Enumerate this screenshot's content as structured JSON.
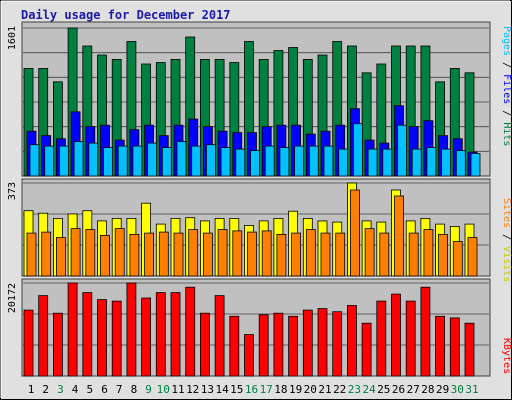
{
  "chart_data": {
    "type": "bar",
    "title": "Daily usage for December 2017",
    "categories": [
      "1",
      "2",
      "3",
      "4",
      "5",
      "6",
      "7",
      "8",
      "9",
      "10",
      "11",
      "12",
      "13",
      "14",
      "15",
      "16",
      "17",
      "18",
      "19",
      "20",
      "21",
      "22",
      "23",
      "24",
      "25",
      "26",
      "27",
      "28",
      "29",
      "30",
      "31"
    ],
    "weekend_days": [
      3,
      9,
      10,
      16,
      17,
      23,
      24,
      30,
      31
    ],
    "colors": {
      "hits": "#008040",
      "files": "#0000ff",
      "pages": "#00c0ff",
      "visits": "#ffff00",
      "sites": "#ff8000",
      "kbytes": "#ff0000",
      "weekday_label": "#000000",
      "weekend_label": "#008040",
      "panel_bg": "#c0c0c0",
      "frame_bg": "#e0e0e0",
      "title": "#1a1aa8"
    },
    "panels": [
      {
        "name": "requests",
        "ymax_label": "1601",
        "ylim": [
          0,
          1601
        ],
        "side_labels": [
          "Pages",
          "Files",
          "Hits"
        ],
        "series": [
          {
            "name": "Hits",
            "color": "#008040",
            "values": [
              1164,
              1164,
              1019,
              1601,
              1406,
              1309,
              1261,
              1455,
              1212,
              1228,
              1261,
              1504,
              1261,
              1261,
              1228,
              1455,
              1261,
              1358,
              1390,
              1261,
              1309,
              1455,
              1406,
              1116,
              1212,
              1406,
              1406,
              1406,
              1019,
              1164,
              1116
            ]
          },
          {
            "name": "Files",
            "color": "#0000ff",
            "values": [
              485,
              437,
              404,
              695,
              534,
              550,
              388,
              501,
              550,
              437,
              550,
              615,
              534,
              485,
              469,
              469,
              534,
              550,
              550,
              453,
              485,
              550,
              728,
              388,
              356,
              760,
              534,
              598,
              437,
              404,
              259
            ]
          },
          {
            "name": "Pages",
            "color": "#00c0ff",
            "values": [
              339,
              323,
              323,
              372,
              356,
              307,
              323,
              323,
              356,
              307,
              372,
              323,
              339,
              307,
              291,
              275,
              323,
              307,
              323,
              323,
              323,
              291,
              566,
              291,
              291,
              550,
              291,
              307,
              291,
              275,
              243
            ]
          }
        ]
      },
      {
        "name": "visits",
        "ymax_label": "373",
        "ylim": [
          0,
          373
        ],
        "side_labels": [
          "Sites",
          "Visits"
        ],
        "series": [
          {
            "name": "Visits",
            "color": "#ffff00",
            "values": [
              262,
              252,
              231,
              249,
              262,
              221,
              231,
              231,
              292,
              208,
              231,
              234,
              221,
              231,
              231,
              203,
              221,
              231,
              260,
              231,
              221,
              216,
              373,
              221,
              216,
              345,
              221,
              231,
              208,
              199,
              208
            ]
          },
          {
            "name": "Sites",
            "color": "#ff8000",
            "values": [
              172,
              176,
              154,
              190,
              186,
              163,
              190,
              167,
              172,
              176,
              172,
              186,
              172,
              186,
              181,
              176,
              181,
              167,
              172,
              186,
              172,
              172,
              345,
              190,
              172,
              321,
              172,
              186,
              167,
              138,
              154
            ]
          }
        ]
      },
      {
        "name": "kbytes",
        "ymax_label": "20172",
        "ylim": [
          0,
          20172
        ],
        "side_labels": [
          "KBytes"
        ],
        "series": [
          {
            "name": "KBytes",
            "color": "#ff0000",
            "values": [
              14289,
              17430,
              13616,
              20172,
              18093,
              16579,
              16243,
              20172,
              16916,
              18093,
              18093,
              19262,
              13616,
              17430,
              12945,
              8981,
              13278,
              13616,
              12945,
              14289,
              14625,
              13954,
              15287,
              11444,
              16243,
              17757,
              16243,
              19262,
              12945,
              12610,
              11444
            ]
          }
        ]
      }
    ]
  }
}
